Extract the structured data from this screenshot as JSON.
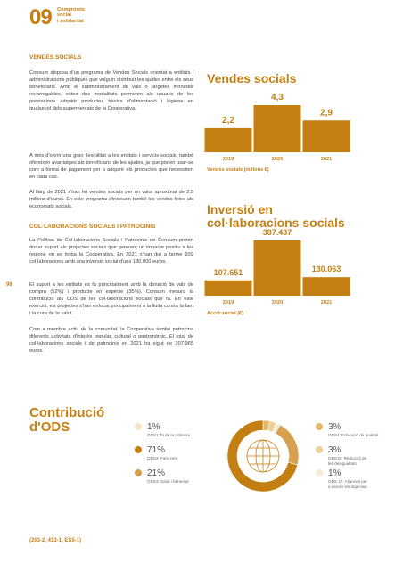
{
  "header": {
    "number": "09",
    "section": [
      "Compromís",
      "social",
      "i solidaritat"
    ]
  },
  "sections": [
    {
      "heading": "VENDES SOCIALS",
      "paragraphs": [
        "Consum disposa d'un programa de Vendes Socials orientat a entitats i administracions públiques que vulguin distribuir les ajudes entre els seus beneficiaris. Amb el subministrament de vals o targetes moneder recarregables, estes dos modalitats permeten als usuaris de les prestacions adquirir productes bàsics d'alimentació i higiene en qualsevol dels supermercats de la Cooperativa.",
        "A més d'oferir una gran flexibilitat a les entitats i servicis socials, també ofereixen avantatges als beneficiaris de les ajudes, ja que poden usar-se com a forma de pagament per a adquirir els productes que necessiten en cada cas.",
        "Al llarg de 2021 s'han fet vendes socials per un valor aproximat de 2,9 milions d'euros. En este programa s'inclouen també les vendes fetes als economats socials."
      ]
    },
    {
      "heading": "COL·LABORACIONS SOCIALS I PATROCINIS",
      "paragraphs": [
        "La Política de Col·laboracions Socials i Patrocinis de Consum pretén donar suport als projectes socials que generen un impacte positiu a les regions on es troba la Cooperativa. En 2021 s'han dut a terme 939 col·laboracions amb una inversió social d'uns 130.000 euros.",
        "El suport a les entitats es fa principalment amb la donació de vals de compra (52%) i producte en espècie (35%). Consum mesura la contribució als ODS de les col·laboracions socials que fa. En este exercici, els projectes s'han enfocat principalment a la lluita contra la fam i la cura de la salut.",
        "Com a membre actiu de la comunitat, la Cooperativa també patrocina diferents activitats d'interès popular, cultural o gastronòmic. El total de col·laboracions socials i de patrocinis en 2021 ha sigut de 307.965 euros."
      ]
    }
  ],
  "page_number": "98",
  "footer": "(203-2, 413-1, ES5-1)",
  "chart_data": [
    {
      "type": "bar",
      "title": "Vendes socials",
      "caption": "Vendes socials (milions €)",
      "categories": [
        "2019",
        "2020",
        "2021"
      ],
      "values": [
        2.2,
        4.3,
        2.9
      ],
      "value_labels": [
        "2,2",
        "4,3",
        "2,9"
      ],
      "color": "#c47f12"
    },
    {
      "type": "bar",
      "title": "Inversió en col·laboracions socials",
      "caption": "Acció social (€)",
      "categories": [
        "2019",
        "2020",
        "2021"
      ],
      "values": [
        107651,
        387437,
        130063
      ],
      "value_labels": [
        "107.651",
        "387.437",
        "130.063"
      ],
      "color": "#c47f12"
    },
    {
      "type": "donut",
      "title": "Contribució d'ODS",
      "categories": [
        "ODS1: Fi de la pobresa",
        "ODS2: Fam zero",
        "ODS3: Salut i benestar",
        "ODS4: Educació de qualitat",
        "ODS10: Reducció de les desigualtats",
        "ODS 17: Aliances per a assolir els objectius"
      ],
      "values": [
        1,
        71,
        21,
        3,
        3,
        1
      ],
      "value_labels": [
        "1%",
        "71%",
        "21%",
        "3%",
        "3%",
        "1%"
      ],
      "colors": [
        "#f3e4c4",
        "#c47f12",
        "#d6a04e",
        "#e3b868",
        "#ecd196",
        "#f6ebd3"
      ]
    }
  ]
}
